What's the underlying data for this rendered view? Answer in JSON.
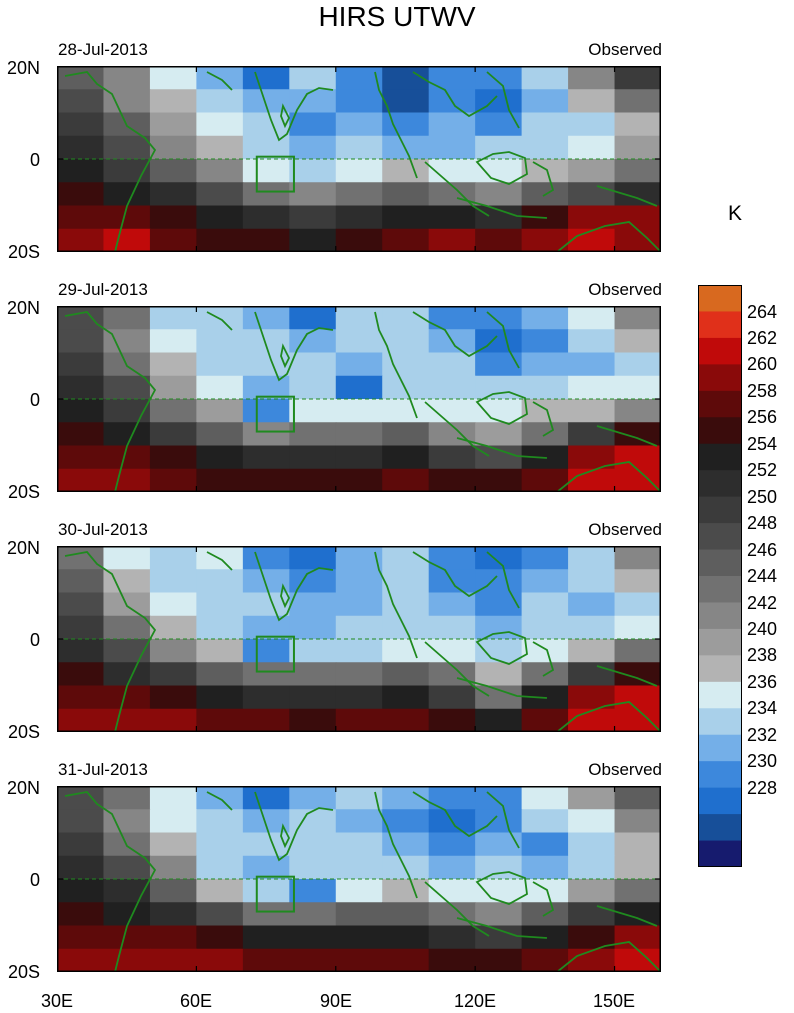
{
  "figure": {
    "title": "HIRS UTWV",
    "unit": "K"
  },
  "panels": [
    {
      "date": "28-Jul-2013",
      "label": "Observed"
    },
    {
      "date": "29-Jul-2013",
      "label": "Observed"
    },
    {
      "date": "30-Jul-2013",
      "label": "Observed"
    },
    {
      "date": "31-Jul-2013",
      "label": "Observed"
    }
  ],
  "axes": {
    "y_ticks": [
      "20N",
      "0",
      "20S"
    ],
    "x_ticks": [
      "30E",
      "60E",
      "90E",
      "120E",
      "150E"
    ]
  },
  "colors": {
    "coast": "#1f8a1f",
    "box": "#1f8a1f",
    "missing": "#c8c8c8"
  },
  "chart_data": {
    "type": "heatmap",
    "variable": "Upper tropospheric water vapor brightness temperature",
    "units": "K",
    "lon_range": [
      30,
      160
    ],
    "lat_range": [
      -20,
      20
    ],
    "x_ticks": [
      30,
      60,
      90,
      120,
      150
    ],
    "y_ticks": [
      20,
      0,
      -20
    ],
    "levels": [
      228,
      230,
      232,
      234,
      236,
      238,
      240,
      242,
      244,
      246,
      248,
      250,
      252,
      254,
      256,
      258,
      260,
      262,
      264
    ],
    "colorbar_colors": [
      "#161b6e",
      "#174f99",
      "#1f6fce",
      "#3d88dc",
      "#74afe8",
      "#a9d0ea",
      "#d6ecf1",
      "#b3b3b3",
      "#9c9c9c",
      "#868686",
      "#717171",
      "#5e5e5e",
      "#4b4b4b",
      "#3b3b3b",
      "#2d2d2d",
      "#202020",
      "#3a0c0c",
      "#5e0a0a",
      "#8a0a0a",
      "#c00a0a",
      "#e0301a",
      "#d8691f"
    ],
    "lon_centers": [
      35,
      45,
      55,
      65,
      75,
      85,
      95,
      105,
      115,
      125,
      135,
      145,
      155
    ],
    "lat_centers": [
      17.5,
      12.5,
      7.5,
      2.5,
      -2.5,
      -7.5,
      -12.5,
      -17.5
    ],
    "maps": [
      {
        "date": "28-Jul-2013",
        "values": [
          [
            248,
            244,
            238,
            234,
            230,
            236,
            232,
            229,
            232,
            232,
            236,
            244,
            252
          ],
          [
            250,
            244,
            240,
            236,
            234,
            234,
            232,
            228,
            232,
            230,
            234,
            240,
            246
          ],
          [
            252,
            248,
            242,
            238,
            236,
            232,
            234,
            232,
            234,
            232,
            236,
            236,
            240
          ],
          [
            254,
            250,
            244,
            240,
            236,
            234,
            236,
            234,
            234,
            236,
            236,
            238,
            242
          ],
          [
            256,
            252,
            248,
            244,
            238,
            236,
            238,
            240,
            238,
            238,
            240,
            242,
            246
          ],
          [
            258,
            256,
            254,
            250,
            246,
            244,
            246,
            248,
            246,
            244,
            248,
            250,
            254
          ],
          [
            260,
            260,
            258,
            256,
            254,
            252,
            254,
            256,
            256,
            254,
            258,
            262,
            262
          ],
          [
            262,
            264,
            260,
            258,
            258,
            256,
            258,
            260,
            262,
            260,
            262,
            264,
            262
          ]
        ]
      },
      {
        "date": "29-Jul-2013",
        "values": [
          [
            250,
            246,
            236,
            236,
            234,
            230,
            236,
            236,
            232,
            232,
            234,
            238,
            244
          ],
          [
            250,
            244,
            238,
            236,
            236,
            234,
            236,
            236,
            234,
            230,
            232,
            236,
            240
          ],
          [
            252,
            246,
            240,
            236,
            236,
            236,
            234,
            236,
            236,
            232,
            234,
            234,
            236
          ],
          [
            254,
            250,
            242,
            238,
            234,
            236,
            230,
            236,
            236,
            236,
            236,
            238,
            238
          ],
          [
            256,
            252,
            246,
            242,
            232,
            238,
            238,
            238,
            238,
            238,
            240,
            240,
            244
          ],
          [
            258,
            256,
            252,
            248,
            244,
            246,
            246,
            248,
            244,
            242,
            246,
            252,
            258
          ],
          [
            260,
            260,
            258,
            256,
            254,
            254,
            254,
            256,
            252,
            250,
            256,
            262,
            264
          ],
          [
            262,
            262,
            260,
            258,
            258,
            258,
            258,
            260,
            258,
            258,
            260,
            264,
            264
          ]
        ]
      },
      {
        "date": "30-Jul-2013",
        "values": [
          [
            246,
            238,
            236,
            238,
            232,
            230,
            234,
            236,
            232,
            230,
            232,
            236,
            244
          ],
          [
            248,
            240,
            236,
            236,
            234,
            232,
            234,
            236,
            232,
            232,
            234,
            236,
            240
          ],
          [
            250,
            242,
            238,
            236,
            236,
            234,
            234,
            236,
            234,
            232,
            236,
            234,
            236
          ],
          [
            252,
            246,
            240,
            236,
            234,
            234,
            236,
            236,
            236,
            234,
            236,
            236,
            238
          ],
          [
            254,
            250,
            244,
            240,
            232,
            236,
            236,
            238,
            238,
            236,
            238,
            240,
            246
          ],
          [
            258,
            254,
            252,
            248,
            246,
            246,
            246,
            248,
            246,
            240,
            246,
            252,
            258
          ],
          [
            260,
            260,
            258,
            256,
            254,
            254,
            254,
            256,
            252,
            246,
            256,
            262,
            264
          ],
          [
            262,
            262,
            262,
            260,
            260,
            258,
            260,
            260,
            258,
            256,
            260,
            264,
            264
          ]
        ]
      },
      {
        "date": "31-Jul-2013",
        "values": [
          [
            250,
            246,
            238,
            234,
            230,
            234,
            236,
            234,
            232,
            232,
            238,
            242,
            248
          ],
          [
            250,
            244,
            238,
            236,
            234,
            236,
            234,
            232,
            230,
            232,
            236,
            238,
            244
          ],
          [
            252,
            246,
            240,
            236,
            236,
            236,
            236,
            234,
            232,
            234,
            232,
            236,
            240
          ],
          [
            254,
            250,
            244,
            236,
            234,
            236,
            236,
            236,
            234,
            236,
            234,
            236,
            240
          ],
          [
            256,
            254,
            248,
            240,
            236,
            232,
            238,
            240,
            238,
            238,
            238,
            242,
            246
          ],
          [
            258,
            256,
            254,
            250,
            246,
            246,
            248,
            248,
            246,
            244,
            248,
            252,
            256
          ],
          [
            260,
            260,
            260,
            258,
            256,
            256,
            256,
            256,
            254,
            252,
            256,
            258,
            262
          ],
          [
            262,
            262,
            262,
            262,
            260,
            260,
            260,
            260,
            258,
            258,
            260,
            262,
            264
          ]
        ]
      }
    ]
  }
}
